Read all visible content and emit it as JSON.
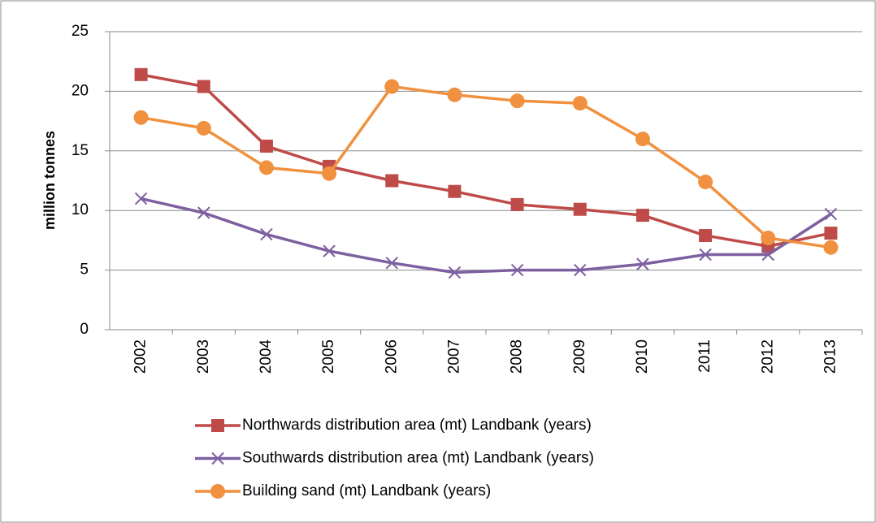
{
  "chart_data": {
    "type": "line",
    "y_label": "million tonnes",
    "categories": [
      "2002",
      "2003",
      "2004",
      "2005",
      "2006",
      "2007",
      "2008",
      "2009",
      "2010",
      "2011",
      "2012",
      "2013"
    ],
    "series": [
      {
        "name": "Northwards distribution area (mt) Landbank (years)",
        "color": "#be4b48",
        "marker": "square",
        "values": [
          21.4,
          20.4,
          15.4,
          13.7,
          12.5,
          11.6,
          10.5,
          10.1,
          9.6,
          7.9,
          7.0,
          8.1
        ]
      },
      {
        "name": "Southwards distribution area (mt) Landbank (years)",
        "color": "#7d60a0",
        "marker": "x",
        "values": [
          11.0,
          9.8,
          8.0,
          6.6,
          5.6,
          4.8,
          5.0,
          5.0,
          5.5,
          6.3,
          6.3,
          9.7
        ]
      },
      {
        "name": "Building sand (mt) Landbank (years)",
        "color": "#f0913f",
        "marker": "circle",
        "values": [
          17.8,
          16.9,
          13.6,
          13.1,
          20.4,
          19.7,
          19.2,
          19.0,
          16.0,
          12.4,
          7.7,
          6.9
        ]
      }
    ],
    "ylim": [
      0,
      25
    ],
    "yticks": [
      0,
      5,
      10,
      15,
      20,
      25
    ],
    "grid": true,
    "legend": "bottom"
  }
}
